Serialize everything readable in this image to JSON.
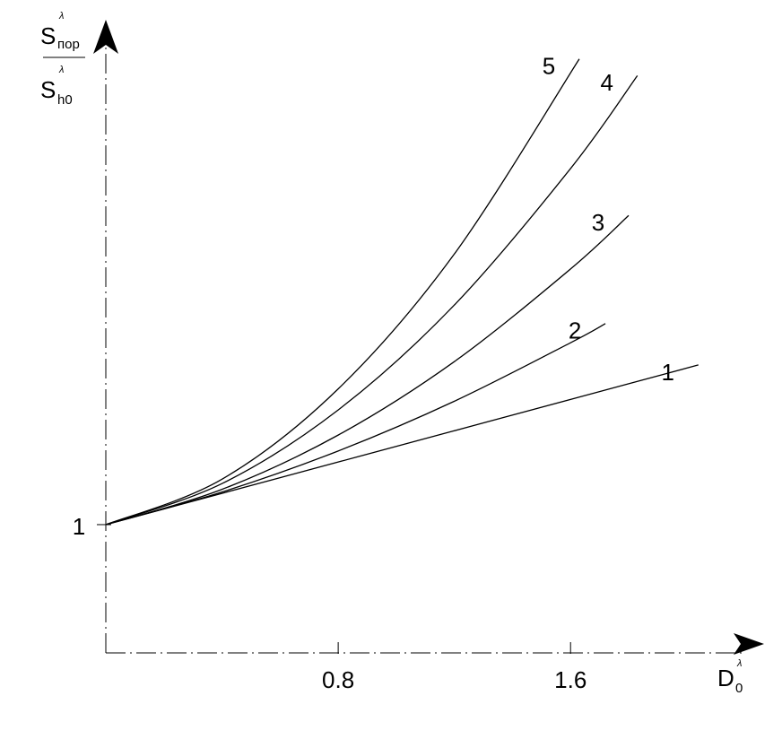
{
  "chart_data": {
    "type": "line",
    "y_label": {
      "numerator": "S",
      "numerator_sub": "пор",
      "denominator": "S",
      "denominator_sub": "h0",
      "sup": "λ"
    },
    "x_label": {
      "text": "D",
      "sub": "0",
      "sup": "λ"
    },
    "xlim": [
      0,
      2.26
    ],
    "ylim": [
      0,
      4.88
    ],
    "xticks": [
      0.8,
      1.6
    ],
    "yticks": [
      1
    ],
    "grid": false,
    "series": [
      {
        "name": "1",
        "color": "#000000",
        "x": [
          0,
          0.4,
          0.8,
          1.2,
          1.6,
          2.04
        ],
        "values": [
          1,
          1.244,
          1.488,
          1.732,
          1.976,
          2.245
        ]
      },
      {
        "name": "2",
        "color": "#000000",
        "x": [
          0,
          0.4,
          0.8,
          1.2,
          1.6,
          1.72
        ],
        "values": [
          1,
          1.254,
          1.574,
          1.962,
          2.418,
          2.567
        ]
      },
      {
        "name": "3",
        "color": "#000000",
        "x": [
          0,
          0.4,
          0.8,
          1.2,
          1.6,
          1.8
        ],
        "values": [
          1,
          1.275,
          1.698,
          2.271,
          2.993,
          3.41
        ]
      },
      {
        "name": "4",
        "color": "#000000",
        "x": [
          0,
          0.4,
          0.8,
          1.2,
          1.6,
          1.83
        ],
        "values": [
          1,
          1.32,
          1.894,
          2.712,
          3.776,
          4.5
        ]
      },
      {
        "name": "5",
        "color": "#000000",
        "x": [
          0,
          0.4,
          0.8,
          1.2,
          1.63
        ],
        "values": [
          1,
          1.354,
          2.058,
          3.11,
          4.63
        ]
      }
    ]
  }
}
